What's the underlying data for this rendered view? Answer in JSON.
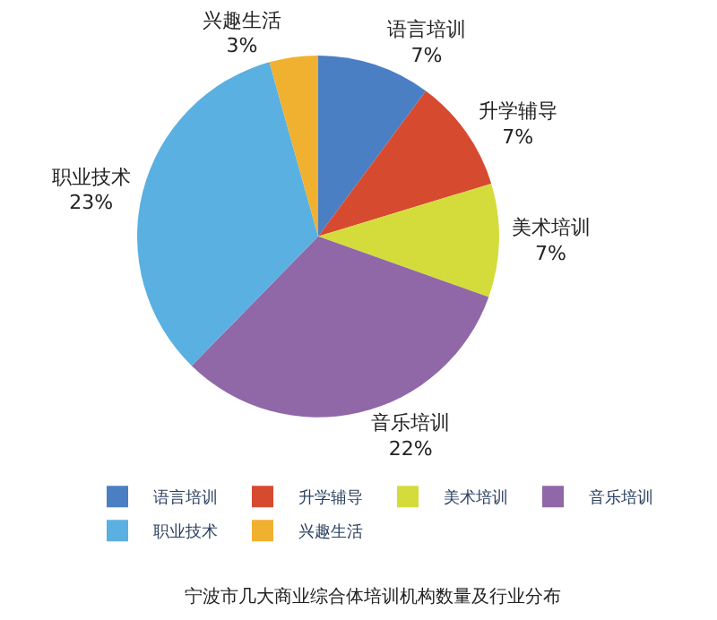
{
  "chart_data": {
    "type": "pie",
    "categories": [
      "语言培训",
      "升学辅导",
      "美术培训",
      "音乐培训",
      "职业技术",
      "兴趣生活"
    ],
    "values": [
      7,
      7,
      7,
      22,
      23,
      3
    ],
    "value_labels": [
      "7%",
      "7%",
      "7%",
      "22%",
      "23%",
      "3%"
    ],
    "colors": [
      "#4a7fc4",
      "#d64a30",
      "#d4dc3c",
      "#9068a8",
      "#5ab0e0",
      "#f0b030"
    ],
    "legend": "bottom",
    "annotations": [
      "宁波市几大商业综合体培训机构数量及行业分布"
    ]
  }
}
